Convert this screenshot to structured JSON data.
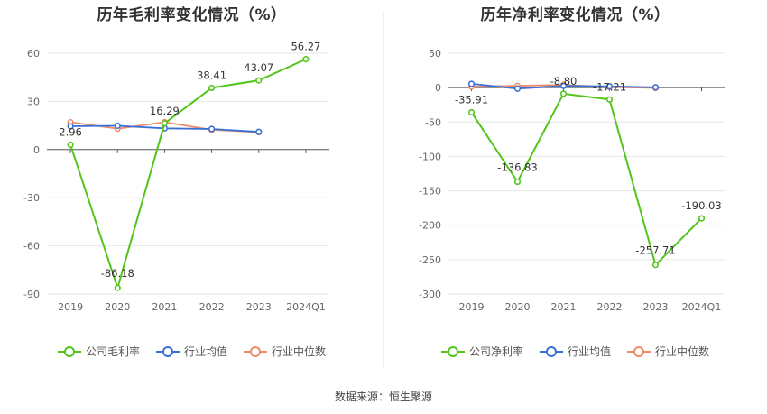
{
  "charts": [
    {
      "title": "历年毛利率变化情况（%）",
      "legend": [
        {
          "label": "公司毛利率",
          "color": "#52c41a"
        },
        {
          "label": "行业均值",
          "color": "#3a6fd8"
        },
        {
          "label": "行业中位数",
          "color": "#ee8a6a"
        }
      ]
    },
    {
      "title": "历年净利率变化情况（%）",
      "legend": [
        {
          "label": "公司净利率",
          "color": "#52c41a"
        },
        {
          "label": "行业均值",
          "color": "#3a6fd8"
        },
        {
          "label": "行业中位数",
          "color": "#ee8a6a"
        }
      ]
    }
  ],
  "source": "数据来源：恒生聚源",
  "chart_data": [
    {
      "type": "line",
      "title": "历年毛利率变化情况（%）",
      "categories": [
        "2019",
        "2020",
        "2021",
        "2022",
        "2023",
        "2024Q1"
      ],
      "ylim": [
        -90,
        60
      ],
      "yticks": [
        60,
        30,
        0,
        -30,
        -60,
        -90
      ],
      "series": [
        {
          "name": "公司毛利率",
          "color": "#52c41a",
          "values": [
            2.96,
            -86.18,
            16.29,
            38.41,
            43.07,
            56.27
          ],
          "labels": [
            "2.96",
            "-86.18",
            "16.29",
            "38.41",
            "43.07",
            "56.27"
          ]
        },
        {
          "name": "行业均值",
          "color": "#3a6fd8",
          "values": [
            14.5,
            14.8,
            13.2,
            12.8,
            11.0,
            null
          ]
        },
        {
          "name": "行业中位数",
          "color": "#ee8a6a",
          "values": [
            17.0,
            13.0,
            17.0,
            12.3,
            10.8,
            null
          ]
        }
      ]
    },
    {
      "type": "line",
      "title": "历年净利率变化情况（%）",
      "categories": [
        "2019",
        "2020",
        "2021",
        "2022",
        "2023",
        "2024Q1"
      ],
      "ylim": [
        -300,
        50
      ],
      "yticks": [
        50,
        0,
        -50,
        -100,
        -150,
        -200,
        -250,
        -300
      ],
      "series": [
        {
          "name": "公司净利率",
          "color": "#52c41a",
          "values": [
            -35.91,
            -136.83,
            -8.8,
            -17.21,
            -257.71,
            -190.03
          ],
          "labels": [
            "-35.91",
            "-136.83",
            "-8.80",
            "-17.21",
            "-257.71",
            "-190.03"
          ]
        },
        {
          "name": "行业均值",
          "color": "#3a6fd8",
          "values": [
            5.5,
            -1.5,
            2.5,
            1.8,
            0.5,
            null
          ]
        },
        {
          "name": "行业中位数",
          "color": "#ee8a6a",
          "values": [
            1.5,
            2.5,
            4.0,
            0.8,
            -0.5,
            null
          ]
        }
      ]
    }
  ]
}
